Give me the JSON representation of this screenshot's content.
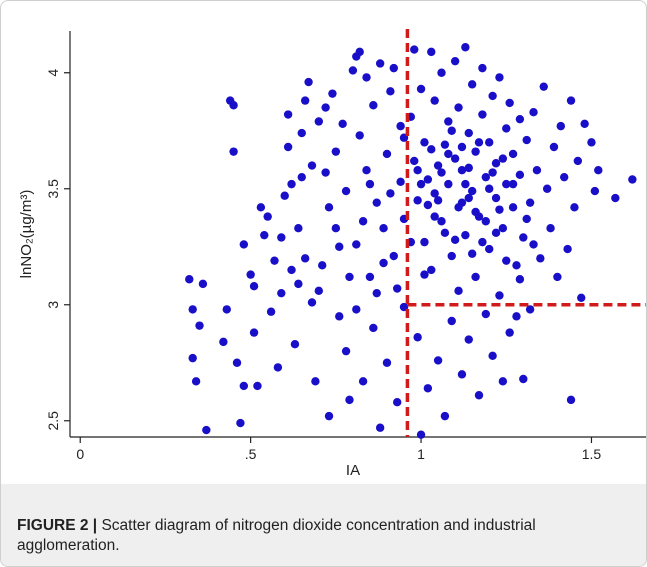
{
  "chart_data": {
    "type": "scatter",
    "xlabel": "IA",
    "ylabel": "lnNO₂(µg/m³)",
    "xlim": [
      -0.03,
      1.66
    ],
    "ylim": [
      2.43,
      4.18
    ],
    "x_ticks": [
      {
        "value": 0,
        "label": "0"
      },
      {
        "value": 0.5,
        "label": ".5"
      },
      {
        "value": 1,
        "label": "1"
      },
      {
        "value": 1.5,
        "label": "1.5"
      }
    ],
    "y_ticks": [
      {
        "value": 2.5,
        "label": "2.5"
      },
      {
        "value": 3,
        "label": "3"
      },
      {
        "value": 3.5,
        "label": "3.5"
      },
      {
        "value": 4,
        "label": "4"
      }
    ],
    "reference_lines": {
      "vertical_x": 0.96,
      "horizontal_y": 3.0,
      "horizontal_from_x": 0.96
    },
    "colors": {
      "points": "#1a0fc8",
      "reference": "#d11a1a",
      "axis": "#222222"
    },
    "points": [
      [
        0.32,
        3.11
      ],
      [
        0.33,
        2.98
      ],
      [
        0.33,
        2.77
      ],
      [
        0.34,
        2.67
      ],
      [
        0.35,
        2.91
      ],
      [
        0.36,
        3.09
      ],
      [
        0.37,
        2.46
      ],
      [
        0.42,
        2.84
      ],
      [
        0.43,
        2.98
      ],
      [
        0.44,
        3.88
      ],
      [
        0.45,
        3.86
      ],
      [
        0.45,
        3.66
      ],
      [
        0.46,
        2.75
      ],
      [
        0.47,
        2.49
      ],
      [
        0.48,
        2.65
      ],
      [
        0.48,
        3.26
      ],
      [
        0.5,
        3.13
      ],
      [
        0.51,
        3.08
      ],
      [
        0.51,
        2.88
      ],
      [
        0.52,
        2.65
      ],
      [
        0.53,
        3.42
      ],
      [
        0.54,
        3.3
      ],
      [
        0.55,
        3.38
      ],
      [
        0.56,
        2.97
      ],
      [
        0.57,
        3.19
      ],
      [
        0.58,
        2.73
      ],
      [
        0.59,
        3.05
      ],
      [
        0.59,
        3.29
      ],
      [
        0.6,
        3.47
      ],
      [
        0.61,
        3.68
      ],
      [
        0.61,
        3.82
      ],
      [
        0.62,
        3.15
      ],
      [
        0.63,
        2.83
      ],
      [
        0.64,
        3.09
      ],
      [
        0.65,
        3.55
      ],
      [
        0.65,
        3.74
      ],
      [
        0.66,
        3.88
      ],
      [
        0.67,
        3.96
      ],
      [
        0.68,
        3.01
      ],
      [
        0.69,
        2.67
      ],
      [
        0.7,
        3.79
      ],
      [
        0.71,
        3.17
      ],
      [
        0.72,
        3.57
      ],
      [
        0.72,
        3.85
      ],
      [
        0.73,
        2.52
      ],
      [
        0.74,
        3.91
      ],
      [
        0.75,
        3.66
      ],
      [
        0.75,
        3.33
      ],
      [
        0.76,
        2.95
      ],
      [
        0.77,
        3.78
      ],
      [
        0.78,
        3.49
      ],
      [
        0.78,
        2.8
      ],
      [
        0.79,
        2.59
      ],
      [
        0.8,
        4.01
      ],
      [
        0.81,
        4.07
      ],
      [
        0.81,
        3.26
      ],
      [
        0.82,
        4.09
      ],
      [
        0.82,
        3.73
      ],
      [
        0.83,
        2.67
      ],
      [
        0.84,
        3.58
      ],
      [
        0.84,
        3.98
      ],
      [
        0.85,
        3.12
      ],
      [
        0.86,
        2.9
      ],
      [
        0.86,
        3.86
      ],
      [
        0.87,
        3.44
      ],
      [
        0.88,
        4.04
      ],
      [
        0.88,
        2.47
      ],
      [
        0.89,
        3.33
      ],
      [
        0.9,
        3.65
      ],
      [
        0.9,
        2.75
      ],
      [
        0.91,
        3.92
      ],
      [
        0.92,
        4.02
      ],
      [
        0.92,
        3.21
      ],
      [
        0.93,
        2.58
      ],
      [
        0.94,
        3.53
      ],
      [
        0.94,
        3.77
      ],
      [
        0.95,
        2.99
      ],
      [
        0.95,
        3.37
      ],
      [
        0.97,
        3.81
      ],
      [
        0.98,
        4.1
      ],
      [
        0.98,
        3.62
      ],
      [
        0.99,
        2.86
      ],
      [
        0.99,
        3.45
      ],
      [
        1.0,
        2.44
      ],
      [
        1.0,
        3.93
      ],
      [
        1.01,
        3.27
      ],
      [
        1.01,
        3.7
      ],
      [
        1.02,
        3.54
      ],
      [
        1.02,
        2.64
      ],
      [
        1.03,
        4.09
      ],
      [
        1.03,
        3.15
      ],
      [
        1.04,
        3.48
      ],
      [
        1.04,
        3.88
      ],
      [
        1.05,
        2.76
      ],
      [
        1.05,
        3.6
      ],
      [
        1.06,
        3.36
      ],
      [
        1.06,
        4.0
      ],
      [
        1.07,
        3.69
      ],
      [
        1.07,
        2.52
      ],
      [
        1.08,
        3.52
      ],
      [
        1.08,
        3.79
      ],
      [
        1.09,
        3.21
      ],
      [
        1.09,
        2.93
      ],
      [
        1.1,
        3.63
      ],
      [
        1.1,
        4.05
      ],
      [
        1.11,
        3.42
      ],
      [
        1.11,
        3.85
      ],
      [
        1.12,
        2.7
      ],
      [
        1.12,
        3.58
      ],
      [
        1.13,
        3.3
      ],
      [
        1.13,
        4.11
      ],
      [
        1.14,
        3.74
      ],
      [
        1.14,
        2.85
      ],
      [
        1.15,
        3.49
      ],
      [
        1.15,
        3.95
      ],
      [
        1.16,
        3.12
      ],
      [
        1.16,
        3.66
      ],
      [
        1.17,
        2.61
      ],
      [
        1.17,
        3.38
      ],
      [
        1.18,
        3.82
      ],
      [
        1.18,
        4.02
      ],
      [
        1.19,
        3.55
      ],
      [
        1.19,
        2.96
      ],
      [
        1.2,
        3.7
      ],
      [
        1.2,
        3.24
      ],
      [
        1.21,
        3.9
      ],
      [
        1.21,
        2.78
      ],
      [
        1.22,
        3.46
      ],
      [
        1.22,
        3.61
      ],
      [
        1.23,
        3.04
      ],
      [
        1.23,
        3.98
      ],
      [
        1.24,
        3.33
      ],
      [
        1.24,
        2.67
      ],
      [
        1.25,
        3.76
      ],
      [
        1.25,
        3.52
      ],
      [
        1.26,
        3.87
      ],
      [
        1.26,
        2.88
      ],
      [
        1.27,
        3.42
      ],
      [
        1.27,
        3.65
      ],
      [
        1.28,
        3.17
      ],
      [
        1.28,
        2.95
      ],
      [
        1.29,
        3.8
      ],
      [
        1.29,
        3.56
      ],
      [
        1.3,
        2.68
      ],
      [
        1.3,
        3.29
      ],
      [
        1.31,
        3.71
      ],
      [
        1.32,
        3.44
      ],
      [
        1.32,
        2.98
      ],
      [
        1.33,
        3.83
      ],
      [
        1.34,
        3.58
      ],
      [
        1.35,
        3.2
      ],
      [
        1.36,
        3.94
      ],
      [
        1.37,
        3.5
      ],
      [
        1.38,
        3.33
      ],
      [
        1.39,
        3.68
      ],
      [
        1.4,
        3.12
      ],
      [
        1.41,
        3.77
      ],
      [
        1.42,
        3.55
      ],
      [
        1.43,
        3.24
      ],
      [
        1.44,
        3.88
      ],
      [
        1.44,
        2.59
      ],
      [
        1.45,
        3.42
      ],
      [
        1.46,
        3.62
      ],
      [
        1.47,
        3.03
      ],
      [
        1.48,
        3.78
      ],
      [
        1.5,
        3.7
      ],
      [
        1.51,
        3.49
      ],
      [
        1.52,
        3.58
      ],
      [
        1.57,
        3.46
      ],
      [
        1.62,
        3.54
      ],
      [
        0.62,
        3.52
      ],
      [
        0.64,
        3.33
      ],
      [
        0.66,
        3.2
      ],
      [
        0.68,
        3.6
      ],
      [
        0.7,
        3.06
      ],
      [
        0.73,
        3.42
      ],
      [
        0.76,
        3.25
      ],
      [
        0.79,
        3.12
      ],
      [
        0.81,
        2.98
      ],
      [
        0.83,
        3.36
      ],
      [
        0.85,
        3.52
      ],
      [
        0.87,
        3.05
      ],
      [
        0.89,
        3.18
      ],
      [
        0.91,
        3.48
      ],
      [
        0.93,
        3.07
      ],
      [
        0.95,
        3.72
      ],
      [
        0.97,
        3.27
      ],
      [
        0.99,
        3.58
      ],
      [
        1.01,
        3.13
      ],
      [
        1.03,
        3.67
      ],
      [
        1.05,
        3.45
      ],
      [
        1.07,
        3.31
      ],
      [
        1.09,
        3.75
      ],
      [
        1.11,
        3.06
      ],
      [
        1.13,
        3.52
      ],
      [
        1.15,
        3.22
      ],
      [
        1.17,
        3.7
      ],
      [
        1.19,
        3.36
      ],
      [
        1.21,
        3.57
      ],
      [
        1.23,
        3.41
      ],
      [
        1.25,
        3.19
      ],
      [
        1.27,
        3.52
      ],
      [
        1.29,
        3.11
      ],
      [
        1.31,
        3.37
      ],
      [
        1.33,
        3.26
      ],
      [
        1.04,
        3.38
      ],
      [
        1.06,
        3.57
      ],
      [
        1.08,
        3.65
      ],
      [
        1.1,
        3.28
      ],
      [
        1.12,
        3.44
      ],
      [
        1.14,
        3.59
      ],
      [
        1.16,
        3.4
      ],
      [
        1.18,
        3.27
      ],
      [
        1.2,
        3.5
      ],
      [
        1.22,
        3.31
      ],
      [
        1.24,
        3.63
      ],
      [
        1.02,
        3.43
      ],
      [
        1.0,
        3.52
      ],
      [
        1.12,
        3.68
      ],
      [
        1.14,
        3.46
      ]
    ]
  },
  "caption": {
    "label": "FIGURE 2 |",
    "text": " Scatter diagram of nitrogen dioxide concentration and industrial agglomeration."
  }
}
